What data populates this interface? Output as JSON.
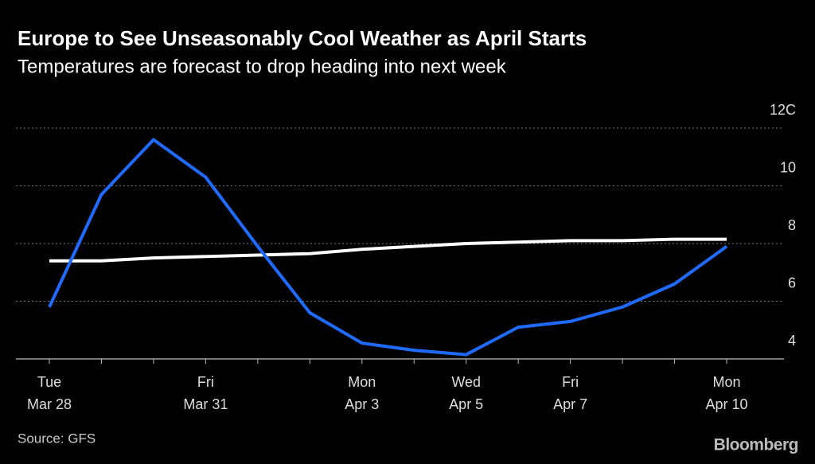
{
  "chart_data": {
    "type": "line",
    "title": "Europe to See Unseasonably Cool Weather as April Starts",
    "subtitle": "Temperatures are forecast to drop heading into next week",
    "categories": [
      "Tue Mar 28",
      null,
      null,
      "Fri Mar 31",
      null,
      null,
      "Mon Apr 3",
      null,
      "Wed Apr 5",
      null,
      "Fri Apr 7",
      null,
      null,
      "Mon Apr 10"
    ],
    "series": [
      {
        "color": "#ffffff",
        "values": [
          7.4,
          7.4,
          7.5,
          7.55,
          7.6,
          7.65,
          7.8,
          7.9,
          8.0,
          8.05,
          8.1,
          8.1,
          8.15,
          8.15
        ]
      },
      {
        "color": "#1f6bff",
        "values": [
          5.8,
          9.7,
          11.6,
          10.3,
          7.9,
          5.6,
          4.55,
          4.3,
          4.15,
          5.1,
          5.3,
          5.8,
          6.6,
          7.9
        ]
      }
    ],
    "ylim": [
      4,
      12
    ],
    "yticks": [
      4,
      6,
      8,
      10,
      {
        "value": 12,
        "label": "12C"
      }
    ],
    "grid": true,
    "source": "Source: GFS",
    "logo": "Bloomberg"
  }
}
